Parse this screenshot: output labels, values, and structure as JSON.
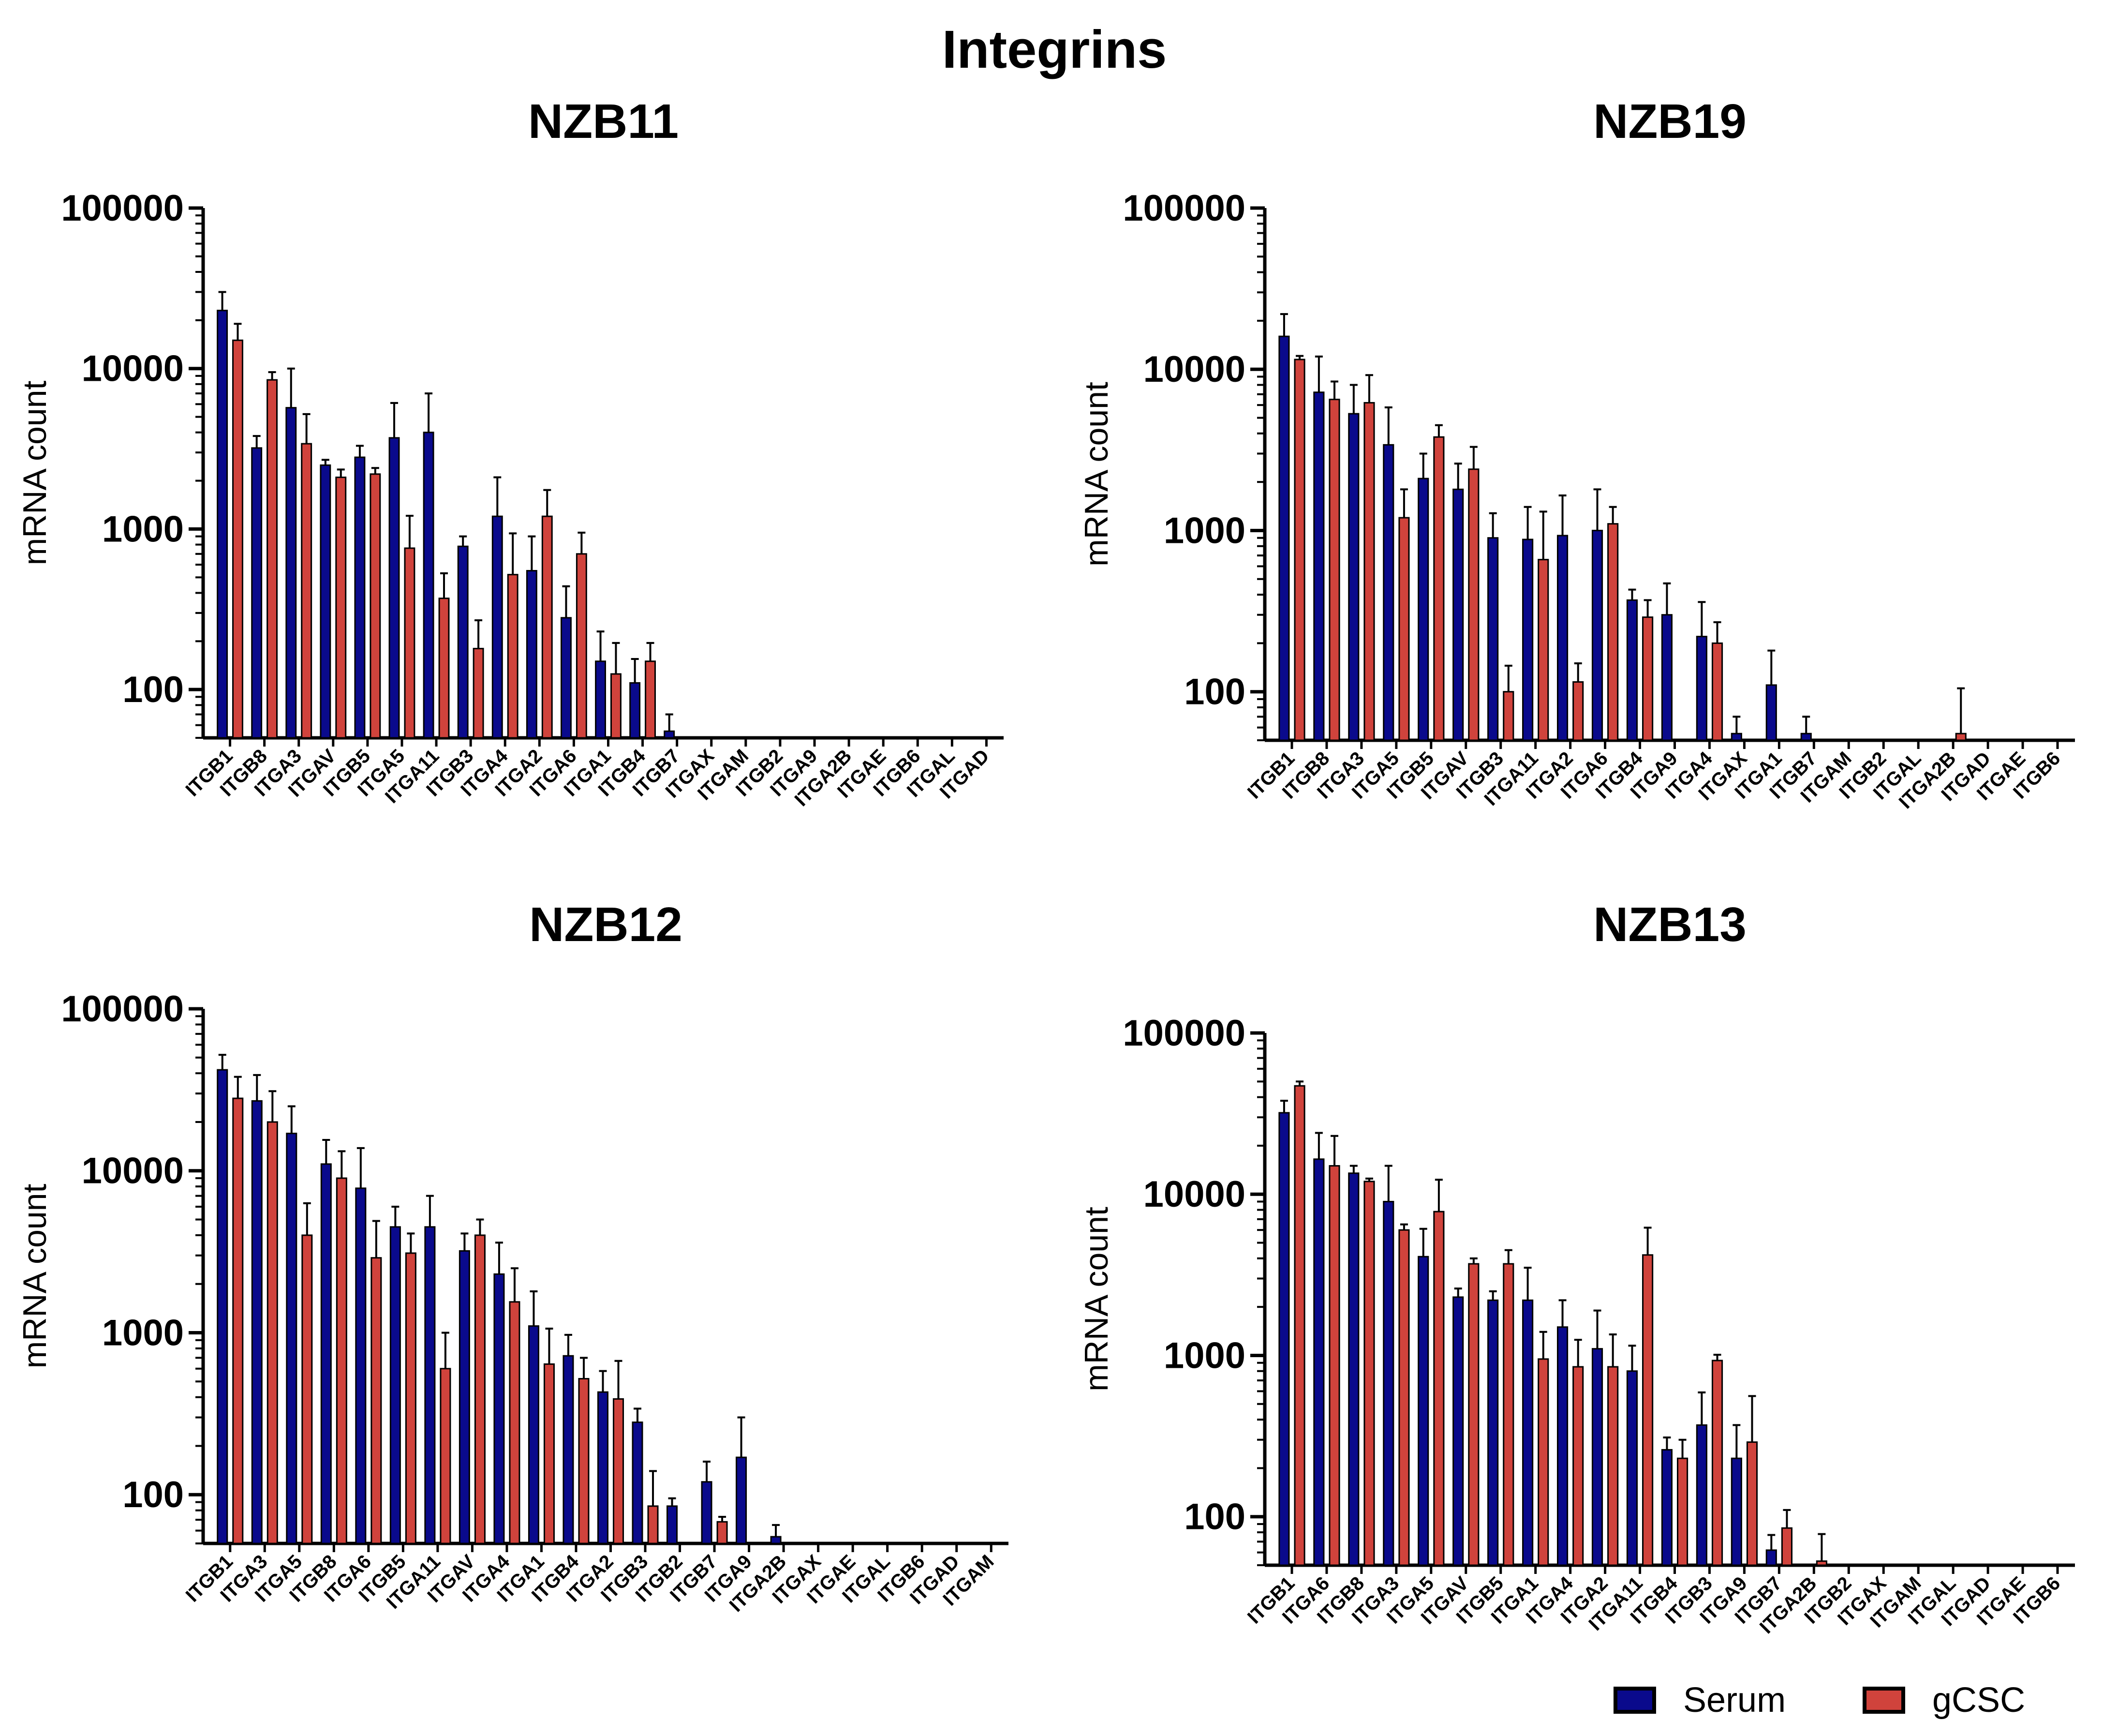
{
  "figure": {
    "title": "Integrins",
    "colors": {
      "serum": "#0a0a8c",
      "gcsc": "#d0433c",
      "axis": "#000000"
    },
    "legend": {
      "position": "bottom-right",
      "items": [
        {
          "label": "Serum",
          "color": "#0a0a8c"
        },
        {
          "label": "gCSC",
          "color": "#d0433c"
        }
      ]
    }
  },
  "chart_data": [
    {
      "type": "bar",
      "title": "NZB11",
      "ylabel": "mRNA count",
      "yscale": "log",
      "ylim": [
        50,
        100000
      ],
      "yticks": [
        "100",
        "1000",
        "10000",
        "100000"
      ],
      "categories": [
        "ITGB1",
        "ITGB8",
        "ITGA3",
        "ITGAV",
        "ITGB5",
        "ITGA5",
        "ITGA11",
        "ITGB3",
        "ITGA4",
        "ITGA2",
        "ITGA6",
        "ITGA1",
        "ITGB4",
        "ITGB7",
        "ITGAX",
        "ITGAM",
        "ITGB2",
        "ITGA9",
        "ITGA2B",
        "ITGAE",
        "ITGB6",
        "ITGAL",
        "ITGAD"
      ],
      "series": [
        {
          "name": "Serum",
          "values": [
            23000,
            3200,
            5700,
            2500,
            2800,
            3700,
            4000,
            780,
            1200,
            550,
            280,
            150,
            110,
            55,
            0,
            0,
            0,
            0,
            0,
            0,
            0,
            0,
            0
          ],
          "errors": [
            7000,
            600,
            4300,
            200,
            500,
            2400,
            3000,
            120,
            900,
            350,
            160,
            80,
            45,
            15,
            0,
            0,
            0,
            0,
            0,
            0,
            0,
            0,
            0
          ]
        },
        {
          "name": "gCSC",
          "values": [
            15000,
            8500,
            3400,
            2100,
            2200,
            760,
            370,
            180,
            520,
            1200,
            700,
            125,
            150,
            0,
            0,
            0,
            0,
            0,
            0,
            0,
            0,
            0,
            0
          ],
          "errors": [
            4000,
            1000,
            1800,
            250,
            200,
            450,
            160,
            90,
            420,
            550,
            250,
            70,
            45,
            0,
            0,
            0,
            0,
            0,
            0,
            0,
            0,
            0,
            0
          ]
        }
      ]
    },
    {
      "type": "bar",
      "title": "NZB19",
      "ylabel": "mRNA count",
      "yscale": "log",
      "ylim": [
        50,
        100000
      ],
      "yticks": [
        "100",
        "1000",
        "10000",
        "100000"
      ],
      "categories": [
        "ITGB1",
        "ITGB8",
        "ITGA3",
        "ITGA5",
        "ITGB5",
        "ITGAV",
        "ITGB3",
        "ITGA11",
        "ITGA2",
        "ITGA6",
        "ITGB4",
        "ITGA9",
        "ITGA4",
        "ITGAX",
        "ITGA1",
        "ITGB7",
        "ITGAM",
        "ITGB2",
        "ITGAL",
        "ITGA2B",
        "ITGAD",
        "ITGAE",
        "ITGB6"
      ],
      "series": [
        {
          "name": "Serum",
          "values": [
            16000,
            7200,
            5300,
            3400,
            2100,
            1800,
            900,
            880,
            930,
            1000,
            370,
            300,
            220,
            55,
            110,
            55,
            0,
            0,
            0,
            0,
            0,
            0,
            0
          ],
          "errors": [
            6000,
            4800,
            2700,
            2400,
            900,
            800,
            380,
            520,
            720,
            800,
            60,
            170,
            140,
            15,
            70,
            15,
            0,
            0,
            0,
            0,
            0,
            0,
            0
          ]
        },
        {
          "name": "gCSC",
          "values": [
            11500,
            6500,
            6200,
            1200,
            3800,
            2400,
            100,
            660,
            115,
            1100,
            290,
            0,
            200,
            0,
            0,
            0,
            0,
            0,
            0,
            55,
            0,
            0,
            0
          ],
          "errors": [
            600,
            1900,
            3000,
            600,
            700,
            900,
            45,
            650,
            35,
            300,
            80,
            0,
            70,
            0,
            0,
            0,
            0,
            0,
            0,
            50,
            0,
            0,
            0
          ]
        }
      ]
    },
    {
      "type": "bar",
      "title": "NZB12",
      "ylabel": "mRNA count",
      "yscale": "log",
      "ylim": [
        50,
        100000
      ],
      "yticks": [
        "100",
        "1000",
        "10000",
        "100000"
      ],
      "categories": [
        "ITGB1",
        "ITGA3",
        "ITGA5",
        "ITGB8",
        "ITGA6",
        "ITGB5",
        "ITGA11",
        "ITGAV",
        "ITGA4",
        "ITGA1",
        "ITGB4",
        "ITGA2",
        "ITGB3",
        "ITGB2",
        "ITGB7",
        "ITGA9",
        "ITGA2B",
        "ITGAX",
        "ITGAE",
        "ITGAL",
        "ITGB6",
        "ITGAD",
        "ITGAM"
      ],
      "series": [
        {
          "name": "Serum",
          "values": [
            42000,
            27000,
            17000,
            11000,
            7800,
            4500,
            4500,
            3200,
            2300,
            1100,
            720,
            430,
            280,
            85,
            120,
            170,
            55,
            0,
            0,
            0,
            0,
            0,
            0
          ],
          "errors": [
            10000,
            12000,
            8000,
            4500,
            6000,
            1500,
            2500,
            900,
            1300,
            700,
            250,
            150,
            60,
            10,
            40,
            130,
            10,
            0,
            0,
            0,
            0,
            0,
            0
          ]
        },
        {
          "name": "gCSC",
          "values": [
            28000,
            20000,
            4000,
            9000,
            2900,
            3100,
            600,
            4000,
            1550,
            640,
            520,
            390,
            85,
            0,
            68,
            0,
            0,
            0,
            0,
            0,
            0,
            0,
            0
          ],
          "errors": [
            10000,
            11000,
            2300,
            4200,
            2000,
            1000,
            400,
            1000,
            950,
            420,
            180,
            280,
            55,
            0,
            5,
            0,
            0,
            0,
            0,
            0,
            0,
            0,
            0
          ]
        }
      ]
    },
    {
      "type": "bar",
      "title": "NZB13",
      "ylabel": "mRNA count",
      "yscale": "log",
      "ylim": [
        50,
        100000
      ],
      "yticks": [
        "100",
        "1000",
        "10000",
        "100000"
      ],
      "categories": [
        "ITGB1",
        "ITGA6",
        "ITGB8",
        "ITGA3",
        "ITGA5",
        "ITGAV",
        "ITGB5",
        "ITGA1",
        "ITGA4",
        "ITGA2",
        "ITGA11",
        "ITGB4",
        "ITGB3",
        "ITGA9",
        "ITGB7",
        "ITGA2B",
        "ITGB2",
        "ITGAX",
        "ITGAM",
        "ITGAL",
        "ITGAD",
        "ITGAE",
        "ITGB6"
      ],
      "series": [
        {
          "name": "Serum",
          "values": [
            32000,
            16500,
            13500,
            9000,
            4100,
            2300,
            2200,
            2200,
            1500,
            1100,
            800,
            260,
            370,
            230,
            62,
            0,
            0,
            0,
            0,
            0,
            0,
            0,
            0
          ],
          "errors": [
            6000,
            7500,
            1500,
            6000,
            2000,
            300,
            300,
            1300,
            700,
            800,
            350,
            50,
            220,
            140,
            15,
            0,
            0,
            0,
            0,
            0,
            0,
            0,
            0
          ]
        },
        {
          "name": "gCSC",
          "values": [
            47000,
            15000,
            12000,
            6000,
            7800,
            3700,
            3700,
            950,
            850,
            850,
            4200,
            230,
            930,
            290,
            85,
            53,
            0,
            0,
            0,
            0,
            0,
            0,
            0
          ],
          "errors": [
            3000,
            8000,
            500,
            500,
            4500,
            300,
            800,
            450,
            400,
            500,
            2000,
            70,
            80,
            270,
            25,
            25,
            0,
            0,
            0,
            0,
            0,
            0,
            0
          ]
        }
      ]
    }
  ]
}
